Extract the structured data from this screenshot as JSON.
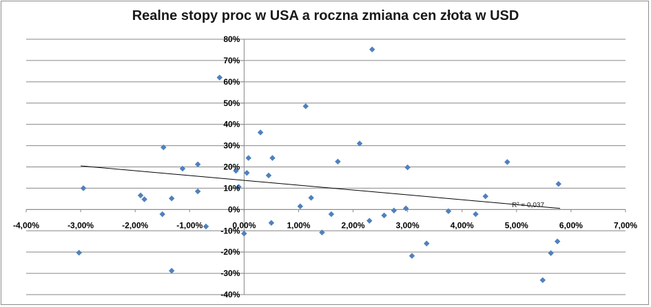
{
  "chart_data": {
    "type": "scatter",
    "title": "Realne stopy proc w USA a roczna zmiana cen złota w USD",
    "xlabel": "",
    "ylabel": "",
    "xlim": [
      -0.04,
      0.07
    ],
    "ylim": [
      -0.4,
      0.8
    ],
    "x_ticks": [
      "-4,00%",
      "-3,00%",
      "-2,00%",
      "-1,00%",
      "0,00%",
      "1,00%",
      "2,00%",
      "3,00%",
      "4,00%",
      "5,00%",
      "6,00%",
      "7,00%"
    ],
    "y_ticks": [
      "-40%",
      "-30%",
      "-20%",
      "-10%",
      "0%",
      "10%",
      "20%",
      "30%",
      "40%",
      "50%",
      "60%",
      "70%",
      "80%"
    ],
    "grid": "horizontal",
    "legend": "none",
    "marker_color": "#4f81bd",
    "trendline": {
      "type": "linear",
      "x_start": -0.03,
      "y_start": 0.205,
      "x_end": 0.058,
      "y_end": 0.005,
      "color": "#000000"
    },
    "r_squared_label": "R² = 0,037",
    "points": [
      {
        "x": -0.0295,
        "y": 0.1
      },
      {
        "x": -0.0303,
        "y": -0.203
      },
      {
        "x": -0.019,
        "y": 0.066
      },
      {
        "x": -0.0183,
        "y": 0.048
      },
      {
        "x": -0.0148,
        "y": 0.292
      },
      {
        "x": -0.015,
        "y": -0.022
      },
      {
        "x": -0.0133,
        "y": 0.052
      },
      {
        "x": -0.0133,
        "y": -0.288
      },
      {
        "x": -0.0113,
        "y": 0.192
      },
      {
        "x": -0.0085,
        "y": 0.212
      },
      {
        "x": -0.0085,
        "y": 0.085
      },
      {
        "x": -0.007,
        "y": -0.08
      },
      {
        "x": -0.0045,
        "y": 0.62
      },
      {
        "x": -0.0015,
        "y": 0.182
      },
      {
        "x": -0.001,
        "y": 0.106
      },
      {
        "x": 0.0,
        "y": -0.113
      },
      {
        "x": 0.0005,
        "y": 0.172
      },
      {
        "x": 0.0008,
        "y": 0.242
      },
      {
        "x": 0.003,
        "y": 0.362
      },
      {
        "x": 0.0045,
        "y": 0.16
      },
      {
        "x": 0.005,
        "y": -0.063
      },
      {
        "x": 0.0052,
        "y": 0.242
      },
      {
        "x": 0.0103,
        "y": 0.015
      },
      {
        "x": 0.0113,
        "y": 0.485
      },
      {
        "x": 0.0123,
        "y": 0.055
      },
      {
        "x": 0.0143,
        "y": -0.108
      },
      {
        "x": 0.016,
        "y": -0.022
      },
      {
        "x": 0.0172,
        "y": 0.225
      },
      {
        "x": 0.0212,
        "y": 0.31
      },
      {
        "x": 0.023,
        "y": -0.053
      },
      {
        "x": 0.0235,
        "y": 0.752
      },
      {
        "x": 0.0257,
        "y": -0.028
      },
      {
        "x": 0.0275,
        "y": -0.005
      },
      {
        "x": 0.0297,
        "y": 0.005
      },
      {
        "x": 0.03,
        "y": 0.198
      },
      {
        "x": 0.0308,
        "y": -0.218
      },
      {
        "x": 0.0335,
        "y": -0.16
      },
      {
        "x": 0.0375,
        "y": -0.008
      },
      {
        "x": 0.0425,
        "y": -0.022
      },
      {
        "x": 0.0443,
        "y": 0.062
      },
      {
        "x": 0.0483,
        "y": 0.223
      },
      {
        "x": 0.0548,
        "y": -0.332
      },
      {
        "x": 0.0563,
        "y": -0.205
      },
      {
        "x": 0.0575,
        "y": -0.15
      },
      {
        "x": 0.0577,
        "y": 0.12
      }
    ]
  }
}
